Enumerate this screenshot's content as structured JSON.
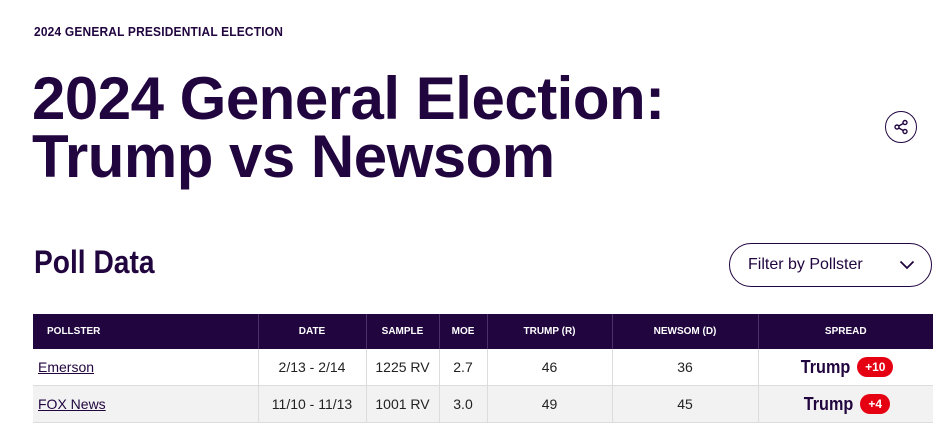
{
  "eyebrow": "2024 GENERAL PRESIDENTIAL ELECTION",
  "title": {
    "line1": "2024 General Election:",
    "line2": "Trump vs Newsom"
  },
  "share": {
    "icon": "share-icon"
  },
  "section_title": "Poll Data",
  "filter": {
    "label": "Filter by Pollster",
    "icon": "chevron-down-icon"
  },
  "table": {
    "headers": [
      "POLLSTER",
      "DATE",
      "SAMPLE",
      "MOE",
      "TRUMP (R)",
      "NEWSOM (D)",
      "SPREAD"
    ],
    "rows": [
      {
        "pollster": "Emerson",
        "date": "2/13 - 2/14",
        "sample": "1225 RV",
        "moe": "2.7",
        "trump": "46",
        "newsom": "36",
        "spread_name": "Trump",
        "spread_value": "+10"
      },
      {
        "pollster": "FOX News",
        "date": "11/10 - 11/13",
        "sample": "1001 RV",
        "moe": "3.0",
        "trump": "49",
        "newsom": "45",
        "spread_name": "Trump",
        "spread_value": "+4"
      }
    ]
  },
  "colors": {
    "brand": "#21053f",
    "spread_badge": "#e50012",
    "alt_row": "#f2f2f2"
  }
}
